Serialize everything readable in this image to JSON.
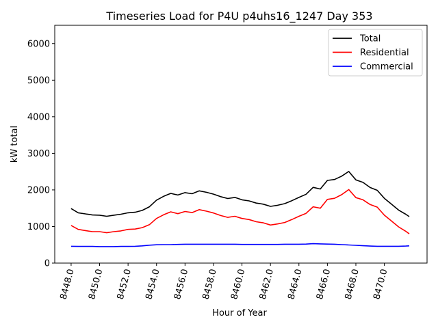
{
  "chart_data": {
    "type": "line",
    "title": "Timeseries Load for P4U p4uhs16_1247  Day 353",
    "xlabel": "Hour of Year",
    "ylabel": "kW total",
    "xlim": [
      8446.85,
      8473.0
    ],
    "ylim": [
      0,
      6500
    ],
    "xticks": [
      8448,
      8450,
      8452,
      8454,
      8456,
      8458,
      8460,
      8462,
      8464,
      8466,
      8468,
      8470
    ],
    "xtick_labels": [
      "8448.0",
      "8450.0",
      "8452.0",
      "8454.0",
      "8456.0",
      "8458.0",
      "8460.0",
      "8462.0",
      "8464.0",
      "8466.0",
      "8468.0",
      "8470.0"
    ],
    "yticks": [
      0,
      1000,
      2000,
      3000,
      4000,
      5000,
      6000
    ],
    "ytick_labels": [
      "0",
      "1000",
      "2000",
      "3000",
      "4000",
      "5000",
      "6000"
    ],
    "legend_position": "top-right",
    "grid": false,
    "x": [
      8448,
      8448.5,
      8449,
      8449.5,
      8450,
      8450.5,
      8451,
      8451.5,
      8452,
      8452.5,
      8453,
      8453.5,
      8454,
      8454.5,
      8455,
      8455.5,
      8456,
      8456.5,
      8457,
      8457.5,
      8458,
      8458.5,
      8459,
      8459.5,
      8460,
      8460.5,
      8461,
      8461.5,
      8462,
      8462.5,
      8463,
      8463.5,
      8464,
      8464.5,
      8465,
      8465.5,
      8466,
      8466.5,
      8467,
      8467.5,
      8468,
      8468.5,
      8469,
      8469.5,
      8470,
      8470.5,
      8471,
      8471.5,
      8471.75
    ],
    "series": [
      {
        "name": "Total",
        "color": "#000000",
        "values": [
          1490,
          1375,
          1345,
          1315,
          1310,
          1280,
          1310,
          1335,
          1375,
          1390,
          1440,
          1540,
          1720,
          1825,
          1905,
          1860,
          1925,
          1895,
          1975,
          1935,
          1885,
          1815,
          1765,
          1795,
          1730,
          1700,
          1640,
          1610,
          1550,
          1580,
          1625,
          1705,
          1795,
          1880,
          2070,
          2025,
          2260,
          2285,
          2375,
          2505,
          2275,
          2205,
          2065,
          1990,
          1770,
          1610,
          1450,
          1335,
          1270
        ]
      },
      {
        "name": "Residential",
        "color": "#ff0000",
        "values": [
          1030,
          920,
          890,
          860,
          860,
          830,
          860,
          880,
          920,
          930,
          970,
          1050,
          1220,
          1320,
          1400,
          1350,
          1410,
          1380,
          1460,
          1420,
          1370,
          1300,
          1250,
          1280,
          1220,
          1190,
          1130,
          1100,
          1040,
          1070,
          1110,
          1190,
          1280,
          1360,
          1540,
          1500,
          1740,
          1770,
          1870,
          2010,
          1790,
          1730,
          1600,
          1530,
          1310,
          1150,
          990,
          870,
          800
        ]
      },
      {
        "name": "Commercial",
        "color": "#0000ff",
        "values": [
          460,
          455,
          455,
          455,
          450,
          450,
          450,
          455,
          455,
          460,
          470,
          490,
          500,
          505,
          505,
          510,
          515,
          515,
          515,
          515,
          515,
          515,
          515,
          515,
          510,
          510,
          510,
          510,
          510,
          510,
          515,
          515,
          515,
          520,
          530,
          525,
          520,
          515,
          505,
          495,
          485,
          475,
          465,
          460,
          460,
          460,
          460,
          465,
          470
        ]
      }
    ]
  }
}
